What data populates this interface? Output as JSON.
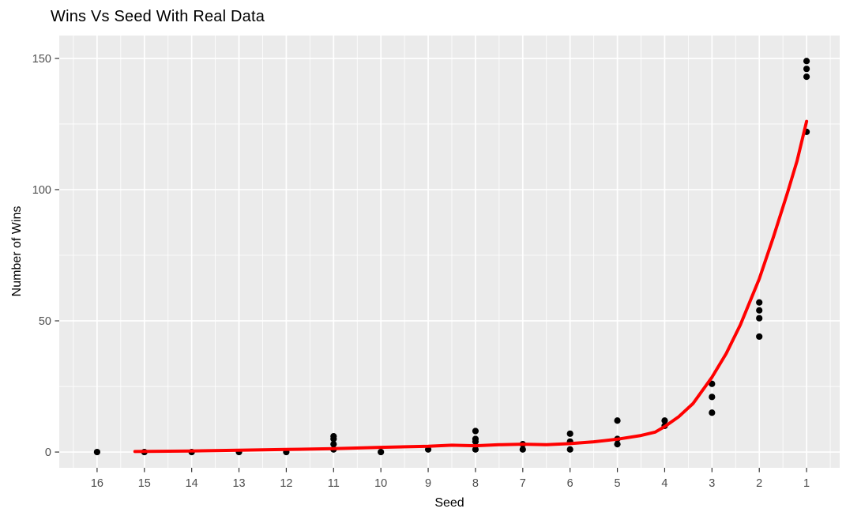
{
  "chart_data": {
    "type": "scatter",
    "title": "Wins Vs Seed With Real Data",
    "xlabel": "Seed",
    "ylabel": "Number of Wins",
    "x_reversed": true,
    "xlim": [
      16.8,
      0.3
    ],
    "ylim": [
      -6,
      158.7
    ],
    "x_ticks": [
      16,
      15,
      14,
      13,
      12,
      11,
      10,
      9,
      8,
      7,
      6,
      5,
      4,
      3,
      2,
      1
    ],
    "x_minor": [
      16.5,
      15.5,
      14.5,
      13.5,
      12.5,
      11.5,
      10.5,
      9.5,
      8.5,
      7.5,
      6.5,
      5.5,
      4.5,
      3.5,
      2.5,
      1.5,
      0.5
    ],
    "y_ticks": [
      0,
      50,
      100,
      150
    ],
    "y_minor": [
      25,
      75,
      125
    ],
    "grid": "major+minor",
    "legend": "none",
    "colors": {
      "panel_bg": "#EBEBEB",
      "grid": "#FFFFFF",
      "point": "#000000",
      "smooth_line": "#FF0000",
      "tick_label": "#4D4D4D",
      "tick_mark": "#333333",
      "title": "#000000"
    },
    "points": [
      {
        "seed": 16,
        "wins": [
          0
        ]
      },
      {
        "seed": 15,
        "wins": [
          0
        ]
      },
      {
        "seed": 14,
        "wins": [
          0
        ]
      },
      {
        "seed": 13,
        "wins": [
          0
        ]
      },
      {
        "seed": 12,
        "wins": [
          0
        ]
      },
      {
        "seed": 11,
        "wins": [
          6,
          5,
          3,
          1
        ]
      },
      {
        "seed": 10,
        "wins": [
          0
        ]
      },
      {
        "seed": 9,
        "wins": [
          1
        ]
      },
      {
        "seed": 8,
        "wins": [
          8,
          5,
          4,
          1
        ]
      },
      {
        "seed": 7,
        "wins": [
          3,
          1
        ]
      },
      {
        "seed": 6,
        "wins": [
          7,
          4,
          1
        ]
      },
      {
        "seed": 5,
        "wins": [
          12,
          5,
          3
        ]
      },
      {
        "seed": 4,
        "wins": [
          12,
          10
        ]
      },
      {
        "seed": 3,
        "wins": [
          26,
          21,
          15
        ]
      },
      {
        "seed": 2,
        "wins": [
          57,
          54,
          51,
          44
        ]
      },
      {
        "seed": 1,
        "wins": [
          149,
          146,
          143,
          122
        ]
      }
    ],
    "smooth_line": [
      [
        15.2,
        0.2
      ],
      [
        14,
        0.4
      ],
      [
        13,
        0.7
      ],
      [
        12,
        1.0
      ],
      [
        11,
        1.3
      ],
      [
        10,
        1.8
      ],
      [
        9,
        2.2
      ],
      [
        8.5,
        2.6
      ],
      [
        8,
        2.4
      ],
      [
        7.5,
        2.8
      ],
      [
        7,
        3.0
      ],
      [
        6.5,
        2.8
      ],
      [
        6,
        3.2
      ],
      [
        5.5,
        3.9
      ],
      [
        5,
        4.9
      ],
      [
        4.5,
        6.3
      ],
      [
        4.2,
        7.6
      ],
      [
        4,
        9.7
      ],
      [
        3.7,
        13.5
      ],
      [
        3.4,
        18.5
      ],
      [
        3,
        28.5
      ],
      [
        2.7,
        37.5
      ],
      [
        2.4,
        48.5
      ],
      [
        2,
        66
      ],
      [
        1.7,
        82
      ],
      [
        1.4,
        99
      ],
      [
        1.2,
        111
      ],
      [
        1,
        126
      ]
    ]
  }
}
